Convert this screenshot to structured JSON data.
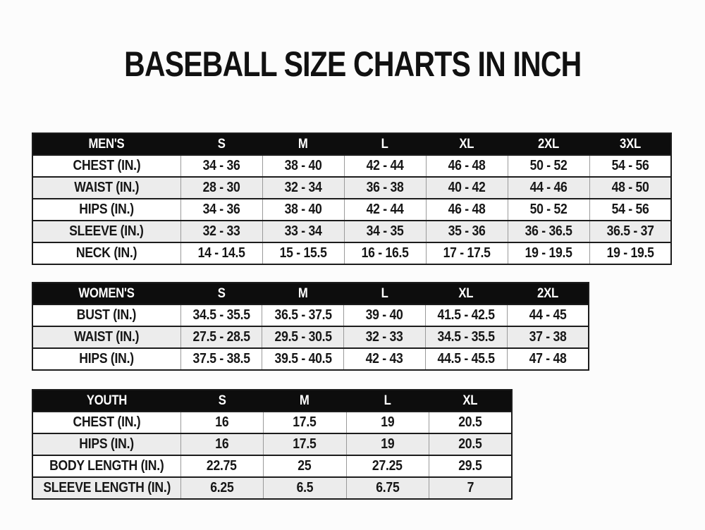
{
  "title": "BASEBALL SIZE CHARTS IN INCH",
  "colors": {
    "page_background": "#fcfcfc",
    "table_header_background": "#0d0d0d",
    "table_header_text": "#ffffff",
    "row_stripe": "#ececec",
    "row_background": "#ffffff",
    "border_dark": "#1c1c1c",
    "border_light": "#9a9a9a",
    "text": "#161616"
  },
  "tables": [
    {
      "id": "mens",
      "group_label": "MEN'S",
      "columns": [
        "S",
        "M",
        "L",
        "XL",
        "2XL",
        "3XL"
      ],
      "rows": [
        {
          "label": "CHEST (IN.)",
          "values": [
            "34 - 36",
            "38 - 40",
            "42 - 44",
            "46 - 48",
            "50 - 52",
            "54 - 56"
          ]
        },
        {
          "label": "WAIST (IN.)",
          "values": [
            "28 - 30",
            "32 - 34",
            "36 - 38",
            "40 - 42",
            "44 - 46",
            "48 - 50"
          ]
        },
        {
          "label": "HIPS (IN.)",
          "values": [
            "34 - 36",
            "38 - 40",
            "42 - 44",
            "46 - 48",
            "50 - 52",
            "54 - 56"
          ]
        },
        {
          "label": "SLEEVE (IN.)",
          "values": [
            "32 - 33",
            "33 - 34",
            "34 - 35",
            "35 - 36",
            "36 - 36.5",
            "36.5 - 37"
          ]
        },
        {
          "label": "NECK (IN.)",
          "values": [
            "14 - 14.5",
            "15 - 15.5",
            "16 - 16.5",
            "17 - 17.5",
            "19 - 19.5",
            "19 - 19.5"
          ]
        }
      ]
    },
    {
      "id": "womens",
      "group_label": "WOMEN'S",
      "columns": [
        "S",
        "M",
        "L",
        "XL",
        "2XL"
      ],
      "rows": [
        {
          "label": "BUST (IN.)",
          "values": [
            "34.5 - 35.5",
            "36.5 - 37.5",
            "39 - 40",
            "41.5 - 42.5",
            "44 - 45"
          ]
        },
        {
          "label": "WAIST (IN.)",
          "values": [
            "27.5 - 28.5",
            "29.5 - 30.5",
            "32 - 33",
            "34.5 - 35.5",
            "37 - 38"
          ]
        },
        {
          "label": "HIPS (IN.)",
          "values": [
            "37.5 - 38.5",
            "39.5 - 40.5",
            "42 - 43",
            "44.5 - 45.5",
            "47 - 48"
          ]
        }
      ]
    },
    {
      "id": "youth",
      "group_label": "YOUTH",
      "columns": [
        "S",
        "M",
        "L",
        "XL"
      ],
      "rows": [
        {
          "label": "CHEST (IN.)",
          "values": [
            "16",
            "17.5",
            "19",
            "20.5"
          ]
        },
        {
          "label": "HIPS (IN.)",
          "values": [
            "16",
            "17.5",
            "19",
            "20.5"
          ]
        },
        {
          "label": "BODY LENGTH (IN.)",
          "values": [
            "22.75",
            "25",
            "27.25",
            "29.5"
          ]
        },
        {
          "label": "SLEEVE LENGTH (IN.)",
          "values": [
            "6.25",
            "6.5",
            "6.75",
            "7"
          ]
        }
      ]
    }
  ]
}
